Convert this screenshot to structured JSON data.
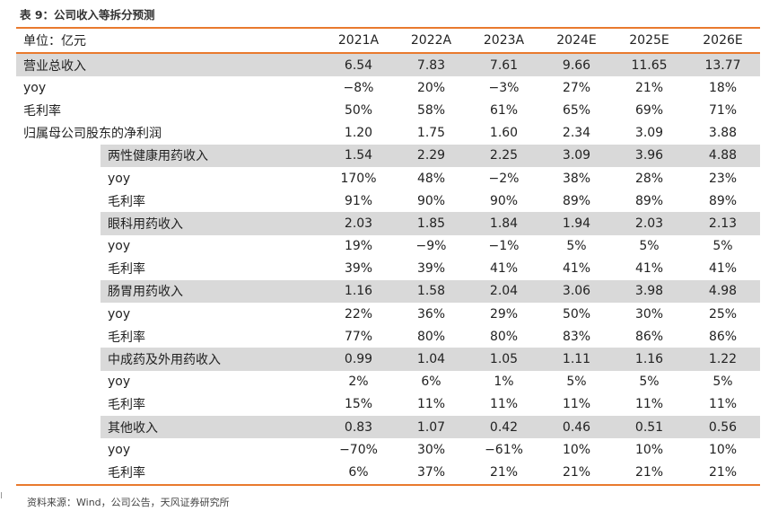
{
  "title": "表 9：公司收入等拆分预测",
  "unit_label": "单位：亿元",
  "years": [
    "2021A",
    "2022A",
    "2023A",
    "2024E",
    "2025E",
    "2026E"
  ],
  "rows": [
    {
      "label": "营业总收入",
      "values": [
        "6.54",
        "7.83",
        "7.61",
        "9.66",
        "11.65",
        "13.77"
      ]
    },
    {
      "label": "yoy",
      "values": [
        "−8%",
        "20%",
        "−3%",
        "27%",
        "21%",
        "18%"
      ]
    },
    {
      "label": "毛利率",
      "values": [
        "50%",
        "58%",
        "61%",
        "65%",
        "69%",
        "71%"
      ]
    },
    {
      "label": "归属母公司股东的净利润",
      "values": [
        "1.20",
        "1.75",
        "1.60",
        "2.34",
        "3.09",
        "3.88"
      ]
    },
    {
      "label": "两性健康用药收入",
      "values": [
        "1.54",
        "2.29",
        "2.25",
        "3.09",
        "3.96",
        "4.88"
      ]
    },
    {
      "label": "yoy",
      "values": [
        "170%",
        "48%",
        "−2%",
        "38%",
        "28%",
        "23%"
      ]
    },
    {
      "label": "毛利率",
      "values": [
        "91%",
        "90%",
        "90%",
        "89%",
        "89%",
        "89%"
      ]
    },
    {
      "label": "眼科用药收入",
      "values": [
        "2.03",
        "1.85",
        "1.84",
        "1.94",
        "2.03",
        "2.13"
      ]
    },
    {
      "label": "yoy",
      "values": [
        "19%",
        "−9%",
        "−1%",
        "5%",
        "5%",
        "5%"
      ]
    },
    {
      "label": "毛利率",
      "values": [
        "39%",
        "39%",
        "41%",
        "41%",
        "41%",
        "41%"
      ]
    },
    {
      "label": "肠胃用药收入",
      "values": [
        "1.16",
        "1.58",
        "2.04",
        "3.06",
        "3.98",
        "4.98"
      ]
    },
    {
      "label": "yoy",
      "values": [
        "22%",
        "36%",
        "29%",
        "50%",
        "30%",
        "25%"
      ]
    },
    {
      "label": "毛利率",
      "values": [
        "77%",
        "80%",
        "80%",
        "83%",
        "86%",
        "86%"
      ]
    },
    {
      "label": "中成药及外用药收入",
      "values": [
        "0.99",
        "1.04",
        "1.05",
        "1.11",
        "1.16",
        "1.22"
      ]
    },
    {
      "label": "yoy",
      "values": [
        "2%",
        "6%",
        "1%",
        "5%",
        "5%",
        "5%"
      ]
    },
    {
      "label": "毛利率",
      "values": [
        "15%",
        "11%",
        "11%",
        "11%",
        "11%",
        "11%"
      ]
    },
    {
      "label": "其他收入",
      "values": [
        "0.83",
        "1.07",
        "0.42",
        "0.46",
        "0.51",
        "0.56"
      ]
    },
    {
      "label": "yoy",
      "values": [
        "−70%",
        "30%",
        "−61%",
        "10%",
        "10%",
        "10%"
      ]
    },
    {
      "label": "毛利率",
      "values": [
        "6%",
        "37%",
        "21%",
        "21%",
        "21%",
        "21%"
      ]
    }
  ],
  "source": "资料来源：Wind，公司公告，天风证券研究所"
}
